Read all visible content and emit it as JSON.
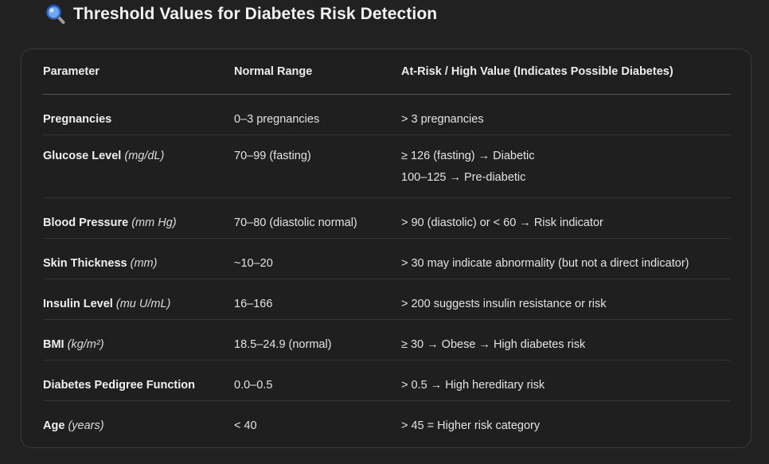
{
  "page": {
    "title": "Threshold Values for Diabetes Risk Detection",
    "title_icon": "magnifying-glass-icon"
  },
  "table": {
    "headers": {
      "parameter": "Parameter",
      "normal_range": "Normal Range",
      "at_risk": "At-Risk / High Value (Indicates Possible Diabetes)"
    },
    "rows": [
      {
        "name": "Pregnancies",
        "unit": "",
        "normal": "0–3 pregnancies",
        "risk": [
          "> 3 pregnancies"
        ]
      },
      {
        "name": "Glucose Level",
        "unit": "(mg/dL)",
        "normal": "70–99 (fasting)",
        "risk": [
          "≥ 126 (fasting) → Diabetic",
          "100–125 → Pre-diabetic"
        ]
      },
      {
        "name": "Blood Pressure",
        "unit": "(mm Hg)",
        "normal": "70–80 (diastolic normal)",
        "risk": [
          "> 90 (diastolic) or < 60 → Risk indicator"
        ]
      },
      {
        "name": "Skin Thickness",
        "unit": "(mm)",
        "normal": "~10–20",
        "risk": [
          "> 30 may indicate abnormality (but not a direct indicator)"
        ]
      },
      {
        "name": "Insulin Level",
        "unit": "(mu U/mL)",
        "normal": "16–166",
        "risk": [
          "> 200 suggests insulin resistance or risk"
        ]
      },
      {
        "name": "BMI",
        "unit": "(kg/m²)",
        "normal": "18.5–24.9 (normal)",
        "risk": [
          "≥ 30 → Obese → High diabetes risk"
        ]
      },
      {
        "name": "Diabetes Pedigree Function",
        "unit": "",
        "normal": "0.0–0.5",
        "risk": [
          "> 0.5 → High hereditary risk"
        ]
      },
      {
        "name": "Age",
        "unit": "(years)",
        "normal": "< 40",
        "risk": [
          "> 45 = Higher risk category"
        ]
      }
    ]
  },
  "colors": {
    "background": "#212121",
    "card_border": "#3a3a3a",
    "text": "#ececec",
    "icon_lens": "#3b82f6"
  }
}
